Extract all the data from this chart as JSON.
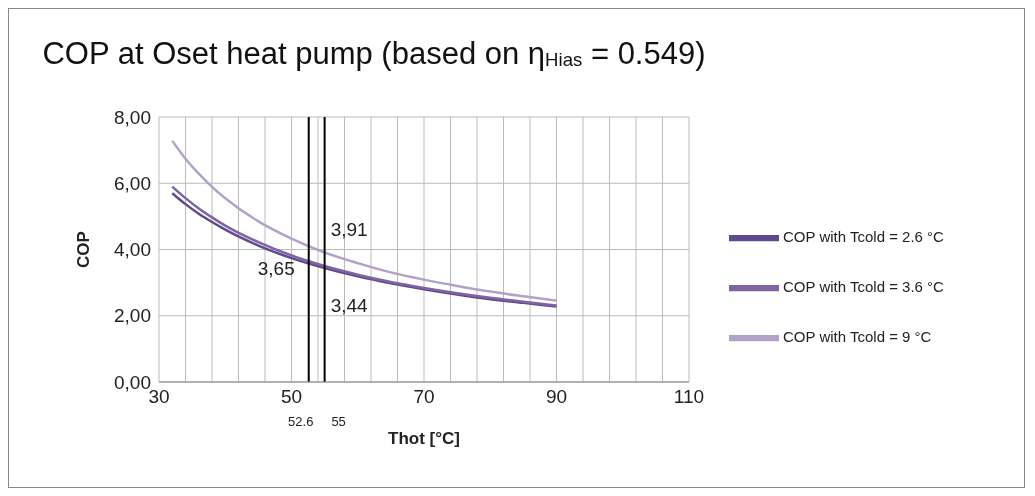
{
  "chart_data": {
    "type": "line",
    "title": "COP at Oset heat pump (based on η$_{Hias}$ = 0.549)",
    "xlabel": "Thot [°C]",
    "ylabel": "COP",
    "x": [
      32,
      34,
      36,
      38,
      40,
      45,
      50,
      55,
      60,
      65,
      70,
      75,
      80,
      85,
      90
    ],
    "series": [
      {
        "name": "COP with Tcold = 2.6 °C",
        "color": "#5f4b8b",
        "values": [
          5.7,
          5.37,
          5.08,
          4.83,
          4.6,
          4.12,
          3.74,
          3.44,
          3.19,
          2.98,
          2.8,
          2.64,
          2.5,
          2.39,
          2.28
        ]
      },
      {
        "name": "COP with Tcold = 3.6 °C",
        "color": "#8064a2",
        "values": [
          5.9,
          5.55,
          5.24,
          4.97,
          4.72,
          4.22,
          3.82,
          3.5,
          3.24,
          3.02,
          2.84,
          2.68,
          2.54,
          2.42,
          2.31
        ]
      },
      {
        "name": "COP with Tcold = 9 °C",
        "color": "#b3a2c7",
        "values": [
          7.28,
          6.74,
          6.29,
          5.89,
          5.55,
          4.85,
          4.33,
          3.91,
          3.59,
          3.31,
          3.09,
          2.9,
          2.73,
          2.59,
          2.46
        ]
      }
    ],
    "xlim": [
      30,
      110
    ],
    "xticks": [
      30,
      {
        "value": 34,
        "label": null
      },
      {
        "value": 38,
        "label": null
      },
      {
        "value": 42,
        "label": null
      },
      {
        "value": 46,
        "label": null
      },
      50,
      {
        "value": 54,
        "label": null
      },
      {
        "value": 58,
        "label": null
      },
      {
        "value": 62,
        "label": null
      },
      {
        "value": 66,
        "label": null
      },
      70,
      {
        "value": 74,
        "label": null
      },
      {
        "value": 78,
        "label": null
      },
      {
        "value": 82,
        "label": null
      },
      {
        "value": 86,
        "label": null
      },
      90,
      {
        "value": 94,
        "label": null
      },
      {
        "value": 98,
        "label": null
      },
      {
        "value": 102,
        "label": null
      },
      {
        "value": 106,
        "label": null
      },
      110
    ],
    "ylim": [
      0,
      8
    ],
    "yticks": [
      {
        "value": 0,
        "label": "0,00"
      },
      {
        "value": 2,
        "label": "2,00"
      },
      {
        "value": 4,
        "label": "4,00"
      },
      {
        "value": 6,
        "label": "6,00"
      },
      {
        "value": 8,
        "label": "8,00"
      }
    ],
    "ref_lines": [
      {
        "axis": "x",
        "value": 52.6,
        "label": "52.6",
        "color": "#000000"
      },
      {
        "axis": "x",
        "value": 55,
        "label": "55",
        "color": "#000000"
      }
    ],
    "annotations": [
      "3,65",
      "3,91",
      "3,44"
    ],
    "grid": true,
    "legend": "right",
    "marker": "none",
    "line_style": "solid"
  }
}
